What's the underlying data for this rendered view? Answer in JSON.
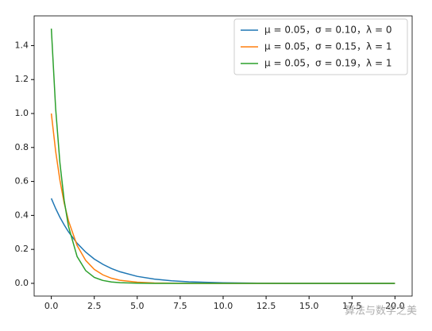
{
  "chart_data": {
    "type": "line",
    "x": [
      0,
      0.25,
      0.5,
      0.75,
      1,
      1.5,
      2,
      2.5,
      3,
      3.5,
      4,
      5,
      6,
      7,
      8,
      10,
      12,
      14,
      16,
      18,
      20
    ],
    "series": [
      {
        "name": "μ = 0.05，σ = 0.10，λ = 0",
        "color": "#1f77b4",
        "values": [
          0.5,
          0.441,
          0.389,
          0.344,
          0.303,
          0.236,
          0.184,
          0.143,
          0.112,
          0.087,
          0.068,
          0.041,
          0.025,
          0.015,
          0.009,
          0.003,
          0.001,
          0,
          0,
          0,
          0
        ]
      },
      {
        "name": "μ = 0.05，σ = 0.15，λ = 1",
        "color": "#ff7f0e",
        "values": [
          1.0,
          0.779,
          0.607,
          0.472,
          0.368,
          0.223,
          0.135,
          0.082,
          0.05,
          0.03,
          0.018,
          0.007,
          0.002,
          0.001,
          0,
          0,
          0,
          0,
          0,
          0,
          0
        ]
      },
      {
        "name": "μ = 0.05，σ = 0.19，λ = 1",
        "color": "#2ca02c",
        "values": [
          1.5,
          1.031,
          0.709,
          0.487,
          0.335,
          0.158,
          0.075,
          0.035,
          0.017,
          0.008,
          0.004,
          0.001,
          0,
          0,
          0,
          0,
          0,
          0,
          0,
          0,
          0
        ]
      }
    ],
    "xlim": [
      -1,
      21
    ],
    "xticks": [
      {
        "value": 0,
        "label": "0.0"
      },
      2.5,
      {
        "value": 5,
        "label": "5.0"
      },
      7.5,
      {
        "value": 10,
        "label": "10.0"
      },
      12.5,
      {
        "value": 15,
        "label": "15.0"
      },
      17.5,
      {
        "value": 20,
        "label": "20.0"
      }
    ],
    "ylim": [
      -0.075,
      1.575
    ],
    "yticks": [
      {
        "value": 0,
        "label": "0.0"
      },
      0.2,
      0.4,
      0.6,
      0.8,
      {
        "value": 1,
        "label": "1.0"
      },
      1.2,
      1.4
    ],
    "legend": "upper right",
    "watermark": "算法与数学之美"
  }
}
